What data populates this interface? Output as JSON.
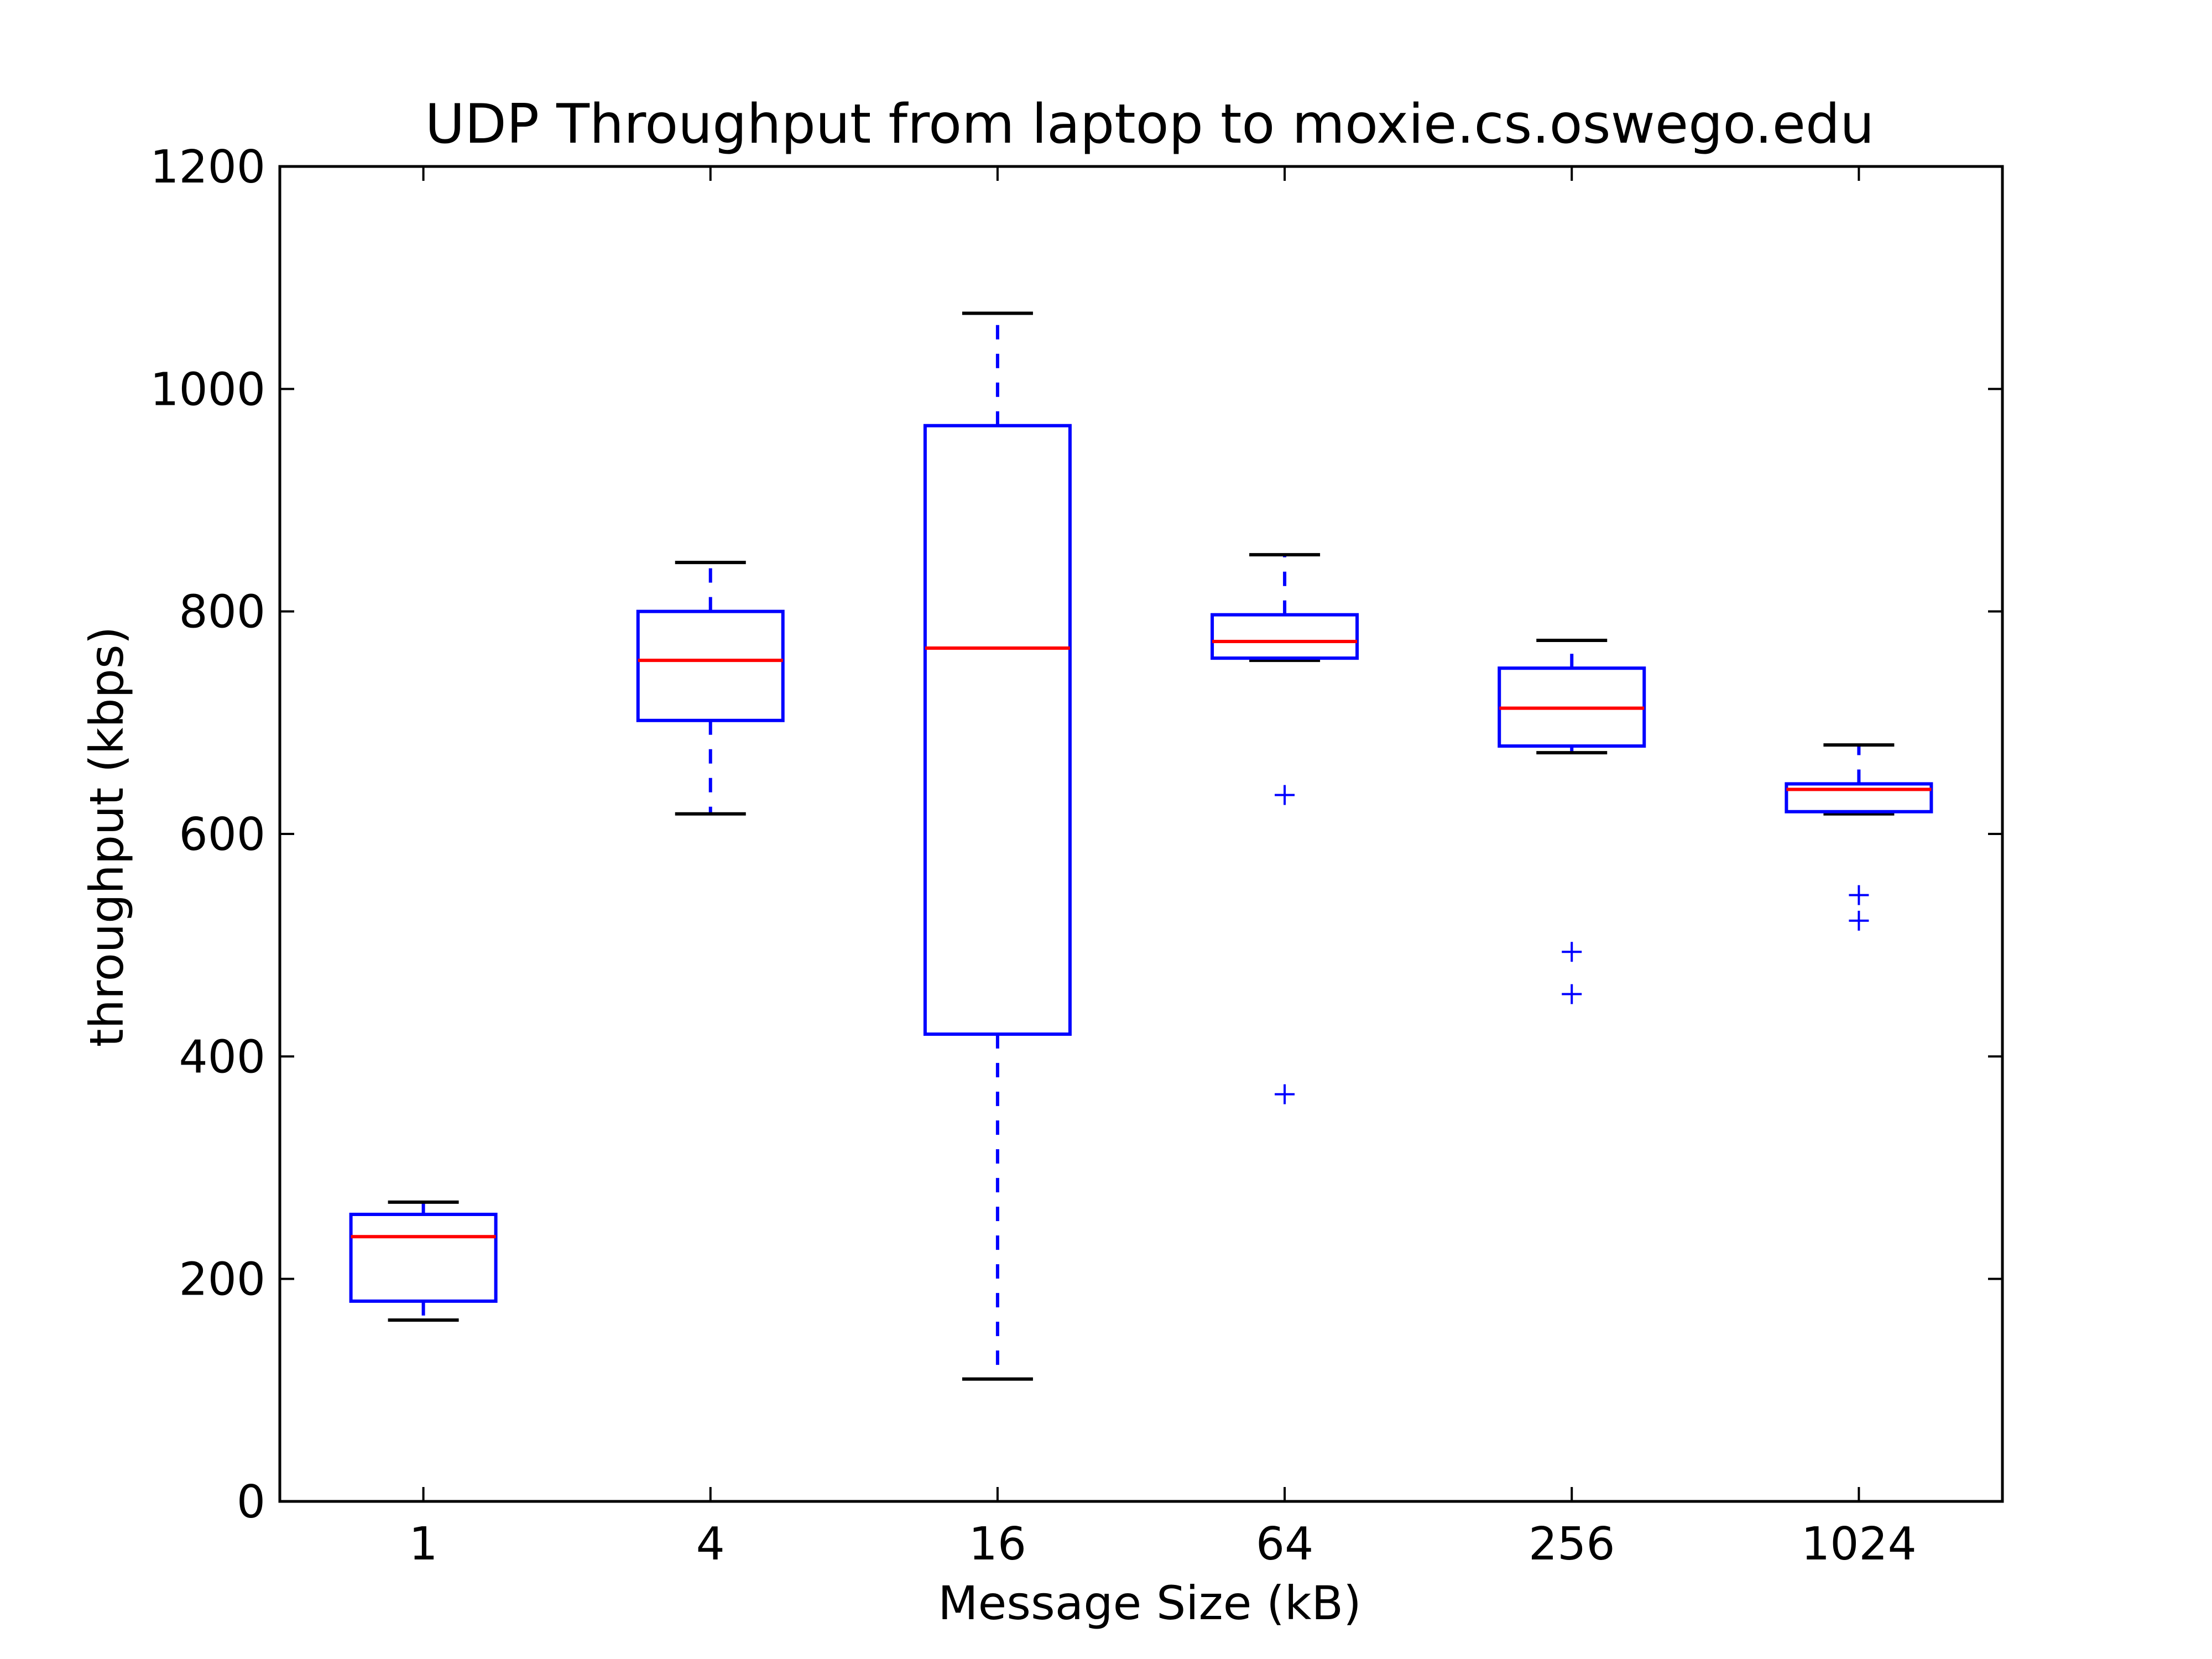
{
  "chart_data": {
    "type": "box",
    "title": "UDP Throughput from laptop to moxie.cs.oswego.edu",
    "xlabel": "Message Size (kB)",
    "ylabel": "throughput (kbps)",
    "ylim": [
      0,
      1200
    ],
    "yticks": [
      0,
      200,
      400,
      600,
      800,
      1000,
      1200
    ],
    "grid": false,
    "categories": [
      "1",
      "4",
      "16",
      "64",
      "256",
      "1024"
    ],
    "boxes": [
      {
        "category": "1",
        "whisker_low": 163,
        "q1": 180,
        "median": 238,
        "q3": 258,
        "whisker_high": 269,
        "outliers": []
      },
      {
        "category": "4",
        "whisker_low": 618,
        "q1": 702,
        "median": 756,
        "q3": 800,
        "whisker_high": 844,
        "outliers": []
      },
      {
        "category": "16",
        "whisker_low": 110,
        "q1": 420,
        "median": 767,
        "q3": 967,
        "whisker_high": 1068,
        "outliers": []
      },
      {
        "category": "64",
        "whisker_low": 756,
        "q1": 758,
        "median": 773,
        "q3": 797,
        "whisker_high": 851,
        "outliers": [
          635,
          366
        ]
      },
      {
        "category": "256",
        "whisker_low": 673,
        "q1": 679,
        "median": 713,
        "q3": 749,
        "whisker_high": 774,
        "outliers": [
          494,
          456
        ]
      },
      {
        "category": "1024",
        "whisker_low": 618,
        "q1": 620,
        "median": 640,
        "q3": 645,
        "whisker_high": 680,
        "outliers": [
          545,
          522
        ]
      }
    ],
    "colors": {
      "box": "#0000ff",
      "median": "#ff0000",
      "cap": "#000000",
      "outlier": "#0000ff",
      "axes": "#000000"
    }
  }
}
